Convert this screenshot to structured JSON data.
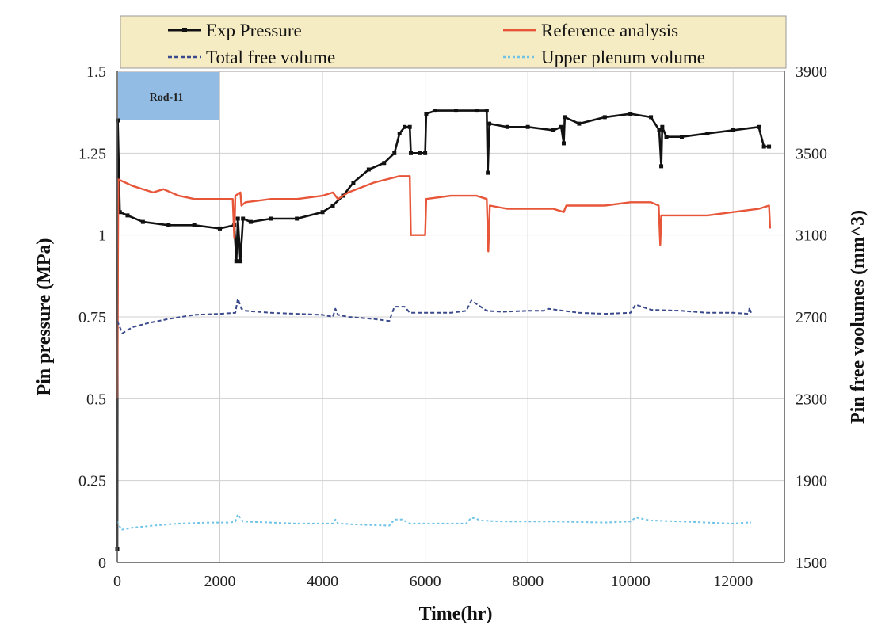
{
  "chart_data": {
    "type": "line",
    "xlabel": "Time(hr)",
    "ylabel": "Pin pressure (MPa)",
    "y2label": "Pin free voolumes (mm^3)",
    "xlim": [
      0,
      13000
    ],
    "ylim": [
      0,
      1.5
    ],
    "y2lim": [
      1500,
      3900
    ],
    "x_ticks": [
      "0",
      "2000",
      "4000",
      "6000",
      "8000",
      "10000",
      "12000"
    ],
    "y_ticks": [
      "0",
      "0.25",
      "0.5",
      "0.75",
      "1",
      "1.25",
      "1.5"
    ],
    "y2_ticks": [
      "1500",
      "1900",
      "2300",
      "2700",
      "3100",
      "3500",
      "3900"
    ],
    "grid": true,
    "legend_position": "top",
    "annotation": "Rod-11",
    "colors": {
      "exp": "#111111",
      "ref": "#e8563a",
      "total": "#3b4a8c",
      "upper": "#6ec3e6",
      "legend_bg": "#f6ecc4",
      "annot_bg": "#7fb0de"
    },
    "series": [
      {
        "name": "Exp Pressure",
        "axis": "left",
        "style": "solid-marker",
        "points": [
          [
            0,
            0.04
          ],
          [
            10,
            1.35
          ],
          [
            50,
            1.07
          ],
          [
            200,
            1.06
          ],
          [
            500,
            1.04
          ],
          [
            1000,
            1.03
          ],
          [
            1500,
            1.03
          ],
          [
            2000,
            1.02
          ],
          [
            2280,
            1.03
          ],
          [
            2320,
            0.92
          ],
          [
            2350,
            1.05
          ],
          [
            2400,
            0.92
          ],
          [
            2450,
            1.05
          ],
          [
            2600,
            1.04
          ],
          [
            3000,
            1.05
          ],
          [
            3500,
            1.05
          ],
          [
            4000,
            1.07
          ],
          [
            4200,
            1.09
          ],
          [
            4400,
            1.12
          ],
          [
            4600,
            1.16
          ],
          [
            4900,
            1.2
          ],
          [
            5200,
            1.22
          ],
          [
            5400,
            1.25
          ],
          [
            5500,
            1.31
          ],
          [
            5600,
            1.33
          ],
          [
            5700,
            1.33
          ],
          [
            5720,
            1.25
          ],
          [
            5900,
            1.25
          ],
          [
            6000,
            1.25
          ],
          [
            6020,
            1.37
          ],
          [
            6200,
            1.38
          ],
          [
            6600,
            1.38
          ],
          [
            7000,
            1.38
          ],
          [
            7200,
            1.38
          ],
          [
            7220,
            1.19
          ],
          [
            7250,
            1.34
          ],
          [
            7600,
            1.33
          ],
          [
            8000,
            1.33
          ],
          [
            8500,
            1.32
          ],
          [
            8650,
            1.33
          ],
          [
            8700,
            1.28
          ],
          [
            8720,
            1.36
          ],
          [
            9000,
            1.34
          ],
          [
            9500,
            1.36
          ],
          [
            10000,
            1.37
          ],
          [
            10400,
            1.36
          ],
          [
            10560,
            1.32
          ],
          [
            10600,
            1.21
          ],
          [
            10620,
            1.33
          ],
          [
            10700,
            1.3
          ],
          [
            11000,
            1.3
          ],
          [
            11500,
            1.31
          ],
          [
            12000,
            1.32
          ],
          [
            12500,
            1.33
          ],
          [
            12600,
            1.27
          ],
          [
            12700,
            1.27
          ]
        ]
      },
      {
        "name": "Reference analysis",
        "axis": "left",
        "style": "solid",
        "points": [
          [
            0,
            0.5
          ],
          [
            20,
            1.17
          ],
          [
            300,
            1.15
          ],
          [
            700,
            1.13
          ],
          [
            900,
            1.14
          ],
          [
            1200,
            1.12
          ],
          [
            1500,
            1.11
          ],
          [
            2000,
            1.11
          ],
          [
            2250,
            1.11
          ],
          [
            2280,
            0.99
          ],
          [
            2300,
            1.12
          ],
          [
            2400,
            1.13
          ],
          [
            2420,
            1.09
          ],
          [
            2500,
            1.1
          ],
          [
            3000,
            1.11
          ],
          [
            3500,
            1.11
          ],
          [
            4000,
            1.12
          ],
          [
            4200,
            1.13
          ],
          [
            4300,
            1.11
          ],
          [
            4500,
            1.13
          ],
          [
            5000,
            1.16
          ],
          [
            5500,
            1.18
          ],
          [
            5700,
            1.18
          ],
          [
            5720,
            1.0
          ],
          [
            6000,
            1.0
          ],
          [
            6020,
            1.11
          ],
          [
            6500,
            1.12
          ],
          [
            7000,
            1.12
          ],
          [
            7200,
            1.11
          ],
          [
            7230,
            0.95
          ],
          [
            7260,
            1.09
          ],
          [
            7600,
            1.08
          ],
          [
            8000,
            1.08
          ],
          [
            8500,
            1.08
          ],
          [
            8700,
            1.07
          ],
          [
            8750,
            1.09
          ],
          [
            9000,
            1.09
          ],
          [
            9500,
            1.09
          ],
          [
            10000,
            1.1
          ],
          [
            10400,
            1.1
          ],
          [
            10550,
            1.09
          ],
          [
            10580,
            0.97
          ],
          [
            10600,
            1.06
          ],
          [
            11000,
            1.06
          ],
          [
            11500,
            1.06
          ],
          [
            12000,
            1.07
          ],
          [
            12500,
            1.08
          ],
          [
            12700,
            1.09
          ],
          [
            12720,
            1.02
          ]
        ]
      },
      {
        "name": "Total free volume",
        "axis": "right",
        "style": "dashed",
        "points": [
          [
            0,
            2680
          ],
          [
            100,
            2620
          ],
          [
            300,
            2650
          ],
          [
            600,
            2670
          ],
          [
            1000,
            2690
          ],
          [
            1500,
            2710
          ],
          [
            2000,
            2715
          ],
          [
            2300,
            2720
          ],
          [
            2350,
            2790
          ],
          [
            2420,
            2740
          ],
          [
            2500,
            2730
          ],
          [
            3000,
            2720
          ],
          [
            3500,
            2715
          ],
          [
            4000,
            2710
          ],
          [
            4200,
            2700
          ],
          [
            4250,
            2740
          ],
          [
            4300,
            2710
          ],
          [
            4500,
            2700
          ],
          [
            5000,
            2690
          ],
          [
            5300,
            2680
          ],
          [
            5400,
            2750
          ],
          [
            5600,
            2750
          ],
          [
            5700,
            2720
          ],
          [
            6000,
            2720
          ],
          [
            6500,
            2720
          ],
          [
            6800,
            2730
          ],
          [
            6900,
            2780
          ],
          [
            7200,
            2730
          ],
          [
            7500,
            2725
          ],
          [
            8000,
            2730
          ],
          [
            8300,
            2730
          ],
          [
            8400,
            2740
          ],
          [
            8700,
            2730
          ],
          [
            9000,
            2720
          ],
          [
            9500,
            2715
          ],
          [
            10000,
            2720
          ],
          [
            10100,
            2760
          ],
          [
            10400,
            2735
          ],
          [
            11000,
            2730
          ],
          [
            11500,
            2720
          ],
          [
            12000,
            2720
          ],
          [
            12300,
            2715
          ],
          [
            12320,
            2745
          ],
          [
            12350,
            2720
          ]
        ]
      },
      {
        "name": "Upper plenum volume",
        "axis": "right",
        "style": "dotted",
        "points": [
          [
            0,
            1700
          ],
          [
            80,
            1660
          ],
          [
            300,
            1670
          ],
          [
            700,
            1680
          ],
          [
            1200,
            1690
          ],
          [
            1800,
            1695
          ],
          [
            2200,
            1695
          ],
          [
            2300,
            1700
          ],
          [
            2350,
            1735
          ],
          [
            2450,
            1700
          ],
          [
            3000,
            1695
          ],
          [
            3500,
            1690
          ],
          [
            4000,
            1690
          ],
          [
            4200,
            1690
          ],
          [
            4250,
            1710
          ],
          [
            4300,
            1690
          ],
          [
            4700,
            1685
          ],
          [
            5300,
            1680
          ],
          [
            5400,
            1710
          ],
          [
            5550,
            1710
          ],
          [
            5700,
            1690
          ],
          [
            6200,
            1690
          ],
          [
            6800,
            1690
          ],
          [
            6900,
            1720
          ],
          [
            7100,
            1705
          ],
          [
            7500,
            1700
          ],
          [
            8000,
            1700
          ],
          [
            8500,
            1700
          ],
          [
            9000,
            1698
          ],
          [
            9500,
            1695
          ],
          [
            10000,
            1700
          ],
          [
            10100,
            1720
          ],
          [
            10400,
            1705
          ],
          [
            11000,
            1700
          ],
          [
            11500,
            1695
          ],
          [
            12000,
            1690
          ],
          [
            12300,
            1695
          ],
          [
            12350,
            1695
          ]
        ]
      }
    ]
  }
}
